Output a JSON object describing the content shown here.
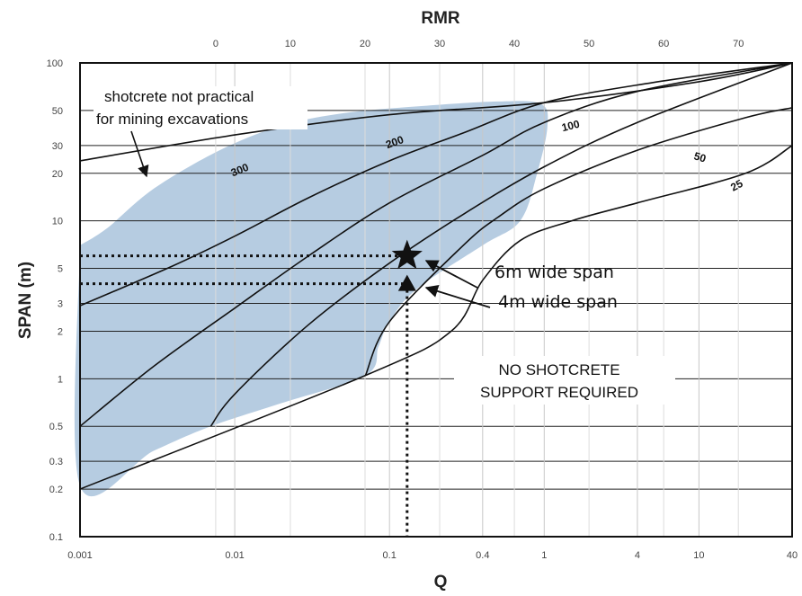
{
  "chart_data": {
    "type": "line",
    "title": "",
    "top_axis": {
      "label": "RMR",
      "ticks": [
        "0",
        "10",
        "20",
        "30",
        "40",
        "50",
        "60",
        "70"
      ]
    },
    "x_axis": {
      "label": "Q",
      "scale": "log",
      "range": [
        0.001,
        40
      ],
      "ticks": [
        "0.001",
        "0.01",
        "0.1",
        "0.4",
        "1",
        "4",
        "10",
        "40"
      ]
    },
    "y_axis": {
      "label": "SPAN (m)",
      "scale": "log",
      "range": [
        0.1,
        100
      ],
      "ticks": [
        "100",
        "50",
        "30",
        "20",
        "10",
        "5",
        "3",
        "2",
        "1",
        "0.5",
        "0.3",
        "0.2",
        "0.1"
      ]
    },
    "grid": true,
    "shaded_region": {
      "color": "#a9c3dc",
      "boundary": [
        [
          0.001,
          7
        ],
        [
          0.0015,
          9
        ],
        [
          0.003,
          16
        ],
        [
          0.008,
          28
        ],
        [
          0.02,
          40
        ],
        [
          0.05,
          48
        ],
        [
          0.15,
          53
        ],
        [
          0.5,
          57
        ],
        [
          0.95,
          55
        ],
        [
          1.05,
          40
        ],
        [
          0.9,
          20
        ],
        [
          0.7,
          10
        ],
        [
          0.4,
          7
        ],
        [
          0.15,
          3.7
        ],
        [
          0.1,
          2.3
        ],
        [
          0.085,
          1.6
        ],
        [
          0.07,
          1.05
        ],
        [
          0.02,
          0.7
        ],
        [
          0.007,
          0.5
        ],
        [
          0.003,
          0.35
        ],
        [
          0.001,
          0.21
        ]
      ]
    },
    "series": [
      {
        "name": "shotcrete not practical for mining excavations",
        "points": [
          [
            0.001,
            24
          ],
          [
            0.01,
            35
          ],
          [
            0.1,
            47
          ],
          [
            1,
            56
          ],
          [
            10,
            76
          ],
          [
            40,
            100
          ]
        ]
      },
      {
        "name": "300",
        "points": [
          [
            0.001,
            2.9
          ],
          [
            0.004,
            5.2
          ],
          [
            0.01,
            8
          ],
          [
            0.03,
            14
          ],
          [
            0.1,
            24
          ],
          [
            0.3,
            36
          ],
          [
            1,
            56
          ],
          [
            5,
            75
          ],
          [
            40,
            100
          ]
        ]
      },
      {
        "name": "200",
        "points": [
          [
            0.001,
            0.5
          ],
          [
            0.003,
            1.2
          ],
          [
            0.01,
            2.8
          ],
          [
            0.03,
            6
          ],
          [
            0.1,
            13
          ],
          [
            0.4,
            26
          ],
          [
            1,
            42
          ],
          [
            4,
            66
          ],
          [
            40,
            100
          ]
        ]
      },
      {
        "name": "100",
        "points": [
          [
            0.007,
            0.5
          ],
          [
            0.01,
            0.8
          ],
          [
            0.03,
            2.2
          ],
          [
            0.1,
            5.4
          ],
          [
            0.3,
            11
          ],
          [
            1,
            22
          ],
          [
            4,
            42
          ],
          [
            40,
            100
          ]
        ]
      },
      {
        "name": "50",
        "points": [
          [
            0.07,
            1.05
          ],
          [
            0.1,
            2.3
          ],
          [
            0.3,
            7
          ],
          [
            0.5,
            10.5
          ],
          [
            1,
            16
          ],
          [
            4,
            28
          ],
          [
            20,
            45
          ],
          [
            40,
            52
          ]
        ]
      },
      {
        "name": "25",
        "points": [
          [
            0.001,
            0.2
          ],
          [
            0.07,
            1.05
          ],
          [
            0.25,
            2
          ],
          [
            0.4,
            4.2
          ],
          [
            0.7,
            7.5
          ],
          [
            1.5,
            10
          ],
          [
            4,
            13
          ],
          [
            20,
            20
          ],
          [
            40,
            30
          ]
        ]
      }
    ],
    "curve_labels": [
      "300",
      "200",
      "100",
      "50",
      "25"
    ],
    "reference_lines": [
      {
        "type": "horizontal",
        "y": 6,
        "style": "dotted"
      },
      {
        "type": "horizontal",
        "y": 4,
        "style": "dotted"
      },
      {
        "type": "vertical",
        "x": 0.13,
        "style": "dotted"
      }
    ],
    "markers": [
      {
        "label": "6m wide span",
        "x": 0.13,
        "y": 6,
        "shape": "star"
      },
      {
        "label": "4m wide span",
        "x": 0.13,
        "y": 4,
        "shape": "triangle"
      }
    ],
    "annotations": {
      "shotcrete_line1": "shotcrete not practical",
      "shotcrete_line2": "for mining  excavations",
      "no_support_line1": "NO SHOTCRETE",
      "no_support_line2": "SUPPORT REQUIRED",
      "span6": "6m wide span",
      "span4": "4m wide span"
    }
  }
}
